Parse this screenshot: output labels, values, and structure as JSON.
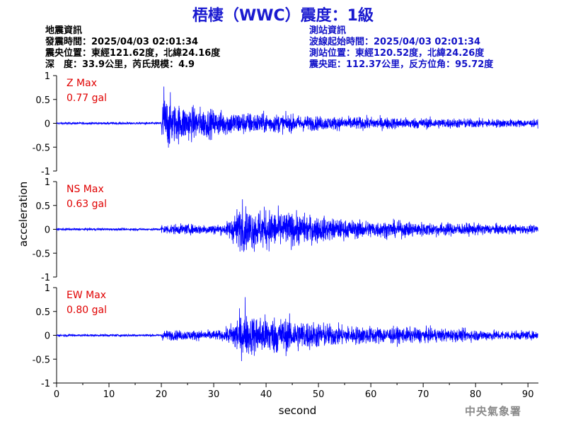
{
  "title": "梧棲（WWC）震度：1級",
  "earthquake_info": {
    "heading": "地震資訊",
    "origin_time": "發震時間：2025/04/03 02:01:34",
    "epicenter": "震央位置：東經121.62度，北緯24.16度",
    "depth_magnitude": "深　度：33.9公里，芮氏規模：4.9"
  },
  "station_info": {
    "heading": "測站資訊",
    "waveform_start": "波線起始時間：2025/04/03 02:01:34",
    "station_location": "測站位置：東經120.52度，北緯24.26度",
    "distance_azimuth": "震央距：112.37公里，反方位角：95.72度"
  },
  "footer": "中央氣象署",
  "colors": {
    "title": "#1a1ad0",
    "trace": "#0000ff",
    "max_label": "#e00000",
    "station_text": "#1212c8"
  },
  "chart_data": {
    "type": "line",
    "xlabel": "second",
    "ylabel": "acceleration",
    "xlim": [
      0,
      92
    ],
    "x_ticks": [
      0,
      10,
      20,
      30,
      40,
      50,
      60,
      70,
      80,
      90
    ],
    "y_ticks": [
      1,
      0.5,
      0,
      -0.5,
      -1
    ],
    "ylim": [
      -1,
      1
    ],
    "panels": [
      {
        "component": "Z",
        "label": "Z Max",
        "max_value": "0.77 gal",
        "peak": 0.77,
        "p_arrival": 20,
        "peak_time": 20.5
      },
      {
        "component": "NS",
        "label": "NS Max",
        "max_value": "0.63 gal",
        "peak": 0.63,
        "p_arrival": 20,
        "peak_time": 35.5
      },
      {
        "component": "EW",
        "label": "EW Max",
        "max_value": "0.80 gal",
        "peak": 0.8,
        "p_arrival": 20,
        "peak_time": 36
      }
    ]
  }
}
